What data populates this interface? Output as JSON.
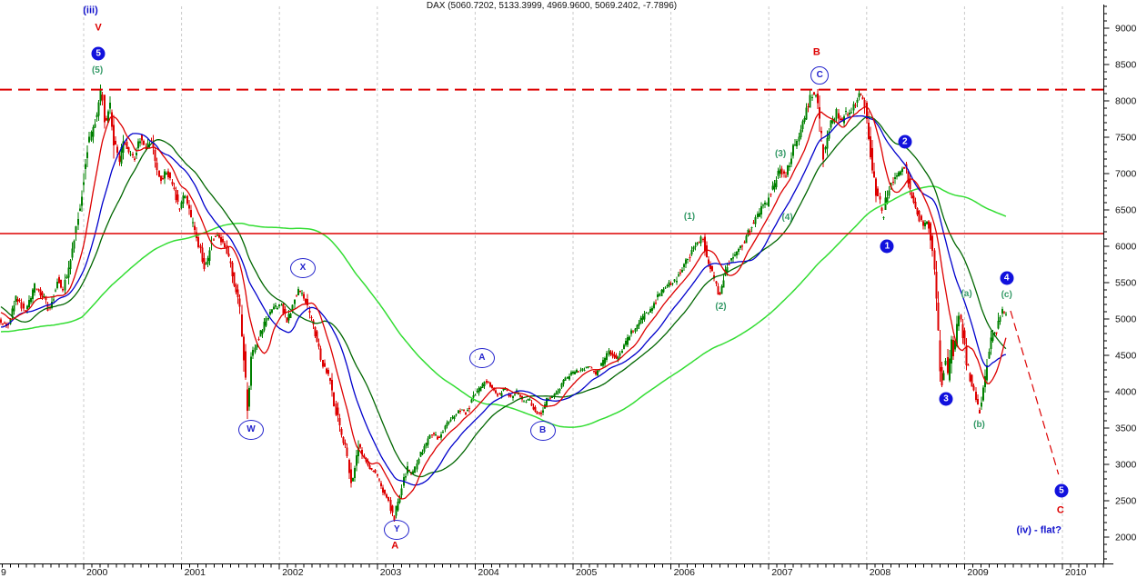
{
  "header": {
    "title": "DAX (5060.7202, 5133.3999, 4969.9600, 5069.2402, -7.7896)"
  },
  "chart_data": {
    "type": "candlestick",
    "instrument": "DAX",
    "timeframe": "weekly",
    "last_quote": {
      "open": 5060.7202,
      "high": 5133.3999,
      "low": 4969.96,
      "close": 5069.2402,
      "change": -7.7896
    },
    "up_color": "#008000",
    "down_color": "#dd0000",
    "grid_color": "#c9c9c9",
    "x_axis": {
      "minor_ticks": "monthly",
      "ticks": [
        {
          "year": 1999,
          "label": "9"
        },
        {
          "year": 2000,
          "label": "2000"
        },
        {
          "year": 2001,
          "label": "2001"
        },
        {
          "year": 2002,
          "label": "2002"
        },
        {
          "year": 2003,
          "label": "2003"
        },
        {
          "year": 2004,
          "label": "2004"
        },
        {
          "year": 2005,
          "label": "2005"
        },
        {
          "year": 2006,
          "label": "2006"
        },
        {
          "year": 2007,
          "label": "2007"
        },
        {
          "year": 2008,
          "label": "2008"
        },
        {
          "year": 2009,
          "label": "2009"
        },
        {
          "year": 2010,
          "label": "2010"
        }
      ]
    },
    "y_axis": {
      "min_visible": 1650,
      "max_visible": 9300,
      "major_tick_step": 500,
      "minor_tick_step": 100,
      "tick_labels": [
        9000,
        8500,
        8000,
        7500,
        7000,
        6500,
        6000,
        5500,
        5000,
        4500,
        4000,
        3500,
        3000,
        2500,
        2000
      ]
    },
    "h_lines": [
      {
        "name": "peak-resistance-line",
        "value": 8155,
        "style": "dashed",
        "color": "#dd0000"
      },
      {
        "name": "mid-support-line",
        "value": 6175,
        "style": "solid",
        "color": "#dd0000"
      }
    ],
    "projection_line": {
      "name": "wave5-projection",
      "from": [
        2009.47,
        5112
      ],
      "to": [
        2009.96,
        2863
      ],
      "color": "#dd0000",
      "style": "dashed"
    },
    "draw_start": 1999.145,
    "price_anchors": [
      [
        1997.5,
        3600
      ],
      [
        1997.75,
        4350
      ],
      [
        1998.0,
        4300
      ],
      [
        1998.25,
        5100
      ],
      [
        1998.54,
        6100
      ],
      [
        1998.75,
        4400
      ],
      [
        1998.9,
        4900
      ],
      [
        1999.0,
        5250
      ],
      [
        1999.08,
        5050
      ],
      [
        1999.14,
        5000
      ],
      [
        1999.24,
        4900
      ],
      [
        1999.33,
        5300
      ],
      [
        1999.42,
        5100
      ],
      [
        1999.52,
        5450
      ],
      [
        1999.61,
        5300
      ],
      [
        1999.67,
        5100
      ],
      [
        1999.75,
        5550
      ],
      [
        1999.81,
        5400
      ],
      [
        1999.89,
        5900
      ],
      [
        1999.95,
        6300
      ],
      [
        2000.0,
        6750
      ],
      [
        2000.05,
        7350
      ],
      [
        2000.12,
        7650
      ],
      [
        2000.17,
        7950
      ],
      [
        2000.2,
        8130
      ],
      [
        2000.24,
        7700
      ],
      [
        2000.29,
        7950
      ],
      [
        2000.33,
        7450
      ],
      [
        2000.38,
        7150
      ],
      [
        2000.43,
        7450
      ],
      [
        2000.47,
        7300
      ],
      [
        2000.54,
        7200
      ],
      [
        2000.59,
        7500
      ],
      [
        2000.63,
        7350
      ],
      [
        2000.71,
        7450
      ],
      [
        2000.77,
        7000
      ],
      [
        2000.82,
        6900
      ],
      [
        2000.86,
        7050
      ],
      [
        2000.93,
        6850
      ],
      [
        2000.99,
        6500
      ],
      [
        2001.05,
        6700
      ],
      [
        2001.12,
        6350
      ],
      [
        2001.19,
        6050
      ],
      [
        2001.26,
        5700
      ],
      [
        2001.33,
        6100
      ],
      [
        2001.39,
        6150
      ],
      [
        2001.47,
        6000
      ],
      [
        2001.54,
        5600
      ],
      [
        2001.61,
        5200
      ],
      [
        2001.65,
        4600
      ],
      [
        2001.69,
        3750
      ],
      [
        2001.73,
        4450
      ],
      [
        2001.79,
        4700
      ],
      [
        2001.84,
        4850
      ],
      [
        2001.91,
        5050
      ],
      [
        2001.96,
        5150
      ],
      [
        2002.03,
        5200
      ],
      [
        2002.1,
        4950
      ],
      [
        2002.17,
        5300
      ],
      [
        2002.22,
        5400
      ],
      [
        2002.29,
        5250
      ],
      [
        2002.35,
        4950
      ],
      [
        2002.42,
        4600
      ],
      [
        2002.47,
        4350
      ],
      [
        2002.54,
        4150
      ],
      [
        2002.58,
        3850
      ],
      [
        2002.64,
        3450
      ],
      [
        2002.7,
        3200
      ],
      [
        2002.75,
        2750
      ],
      [
        2002.79,
        2950
      ],
      [
        2002.83,
        3300
      ],
      [
        2002.88,
        3100
      ],
      [
        2002.93,
        2950
      ],
      [
        2003.0,
        2900
      ],
      [
        2003.07,
        2650
      ],
      [
        2003.12,
        2550
      ],
      [
        2003.19,
        2250
      ],
      [
        2003.23,
        2500
      ],
      [
        2003.28,
        2750
      ],
      [
        2003.33,
        2950
      ],
      [
        2003.37,
        2850
      ],
      [
        2003.44,
        3100
      ],
      [
        2003.51,
        3250
      ],
      [
        2003.58,
        3450
      ],
      [
        2003.64,
        3350
      ],
      [
        2003.72,
        3550
      ],
      [
        2003.79,
        3650
      ],
      [
        2003.87,
        3750
      ],
      [
        2003.93,
        3700
      ],
      [
        2004.0,
        3950
      ],
      [
        2004.07,
        4050
      ],
      [
        2004.13,
        4150
      ],
      [
        2004.19,
        4050
      ],
      [
        2004.26,
        3950
      ],
      [
        2004.32,
        4050
      ],
      [
        2004.38,
        3900
      ],
      [
        2004.44,
        4000
      ],
      [
        2004.51,
        3850
      ],
      [
        2004.56,
        3900
      ],
      [
        2004.63,
        3750
      ],
      [
        2004.68,
        3680
      ],
      [
        2004.75,
        3900
      ],
      [
        2004.81,
        3950
      ],
      [
        2004.88,
        4050
      ],
      [
        2004.93,
        4150
      ],
      [
        2005.0,
        4250
      ],
      [
        2005.09,
        4300
      ],
      [
        2005.19,
        4350
      ],
      [
        2005.25,
        4250
      ],
      [
        2005.32,
        4400
      ],
      [
        2005.39,
        4550
      ],
      [
        2005.46,
        4450
      ],
      [
        2005.53,
        4600
      ],
      [
        2005.6,
        4800
      ],
      [
        2005.68,
        4900
      ],
      [
        2005.74,
        5050
      ],
      [
        2005.82,
        5150
      ],
      [
        2005.88,
        5300
      ],
      [
        2005.94,
        5400
      ],
      [
        2006.0,
        5480
      ],
      [
        2006.05,
        5500
      ],
      [
        2006.11,
        5650
      ],
      [
        2006.18,
        5800
      ],
      [
        2006.24,
        5950
      ],
      [
        2006.3,
        6050
      ],
      [
        2006.34,
        6130
      ],
      [
        2006.38,
        5850
      ],
      [
        2006.43,
        5700
      ],
      [
        2006.48,
        5500
      ],
      [
        2006.51,
        5300
      ],
      [
        2006.56,
        5600
      ],
      [
        2006.61,
        5750
      ],
      [
        2006.65,
        5850
      ],
      [
        2006.71,
        5950
      ],
      [
        2006.76,
        6050
      ],
      [
        2006.83,
        6250
      ],
      [
        2006.9,
        6400
      ],
      [
        2006.95,
        6550
      ],
      [
        2007.0,
        6600
      ],
      [
        2007.04,
        6750
      ],
      [
        2007.09,
        6900
      ],
      [
        2007.13,
        7050
      ],
      [
        2007.18,
        6950
      ],
      [
        2007.23,
        7150
      ],
      [
        2007.27,
        7350
      ],
      [
        2007.32,
        7500
      ],
      [
        2007.37,
        7700
      ],
      [
        2007.41,
        7900
      ],
      [
        2007.46,
        8100
      ],
      [
        2007.51,
        8100
      ],
      [
        2007.55,
        7500
      ],
      [
        2007.58,
        7250
      ],
      [
        2007.62,
        7550
      ],
      [
        2007.66,
        7700
      ],
      [
        2007.71,
        7850
      ],
      [
        2007.76,
        7700
      ],
      [
        2007.8,
        7850
      ],
      [
        2007.85,
        7800
      ],
      [
        2007.9,
        7950
      ],
      [
        2007.94,
        8060
      ],
      [
        2007.97,
        8080
      ],
      [
        2008.02,
        7800
      ],
      [
        2008.06,
        7300
      ],
      [
        2008.11,
        6800
      ],
      [
        2008.16,
        6550
      ],
      [
        2008.18,
        6300
      ],
      [
        2008.22,
        6700
      ],
      [
        2008.27,
        6850
      ],
      [
        2008.31,
        6950
      ],
      [
        2008.36,
        7050
      ],
      [
        2008.41,
        7100
      ],
      [
        2008.45,
        6850
      ],
      [
        2008.5,
        6600
      ],
      [
        2008.55,
        6400
      ],
      [
        2008.59,
        6300
      ],
      [
        2008.64,
        6350
      ],
      [
        2008.67,
        6100
      ],
      [
        2008.71,
        5800
      ],
      [
        2008.74,
        5100
      ],
      [
        2008.77,
        4250
      ],
      [
        2008.79,
        4050
      ],
      [
        2008.82,
        4500
      ],
      [
        2008.85,
        4150
      ],
      [
        2008.88,
        4750
      ],
      [
        2008.91,
        4500
      ],
      [
        2008.95,
        5050
      ],
      [
        2008.99,
        4950
      ],
      [
        2009.02,
        4550
      ],
      [
        2009.04,
        4400
      ],
      [
        2009.07,
        4250
      ],
      [
        2009.1,
        4050
      ],
      [
        2009.13,
        3900
      ],
      [
        2009.17,
        3680
      ],
      [
        2009.21,
        4100
      ],
      [
        2009.24,
        4300
      ],
      [
        2009.28,
        4700
      ],
      [
        2009.31,
        4850
      ],
      [
        2009.34,
        4750
      ],
      [
        2009.36,
        4950
      ],
      [
        2009.4,
        5100
      ],
      [
        2009.43,
        5070
      ]
    ],
    "moving_averages": [
      {
        "name": "ma-long-lightgreen",
        "period_weeks": 130,
        "color": "#33dd33",
        "width": 1.5
      },
      {
        "name": "ma-slow-darkgreen",
        "period_weeks": 40,
        "color": "#006600",
        "width": 1.3
      },
      {
        "name": "ma-medium-blue",
        "period_weeks": 26,
        "color": "#0000cc",
        "width": 1.3
      },
      {
        "name": "ma-fast-red",
        "period_weeks": 13,
        "color": "#dd0000",
        "width": 1.3
      }
    ],
    "annotations": [
      {
        "id": "wave-iii-label",
        "kind": "text",
        "color": "blue",
        "text": "(iii)",
        "t": 2000.07,
        "v": 9237
      },
      {
        "id": "wave-V-label",
        "kind": "text",
        "color": "red",
        "text": "V",
        "t": 2000.15,
        "v": 9000
      },
      {
        "id": "wave-5-disc-top",
        "kind": "disc",
        "text": "5",
        "t": 2000.15,
        "v": 8650
      },
      {
        "id": "wave-5-paren",
        "kind": "text",
        "color": "green",
        "text": "(5)",
        "t": 2000.14,
        "v": 8412
      },
      {
        "id": "wave-W-circle",
        "kind": "circle",
        "text": "W",
        "t": 2001.71,
        "v": 3475
      },
      {
        "id": "wave-X-circle",
        "kind": "circle",
        "text": "X",
        "t": 2002.24,
        "v": 5700
      },
      {
        "id": "wave-Y-circle",
        "kind": "circle",
        "text": "Y",
        "t": 2003.2,
        "v": 2100
      },
      {
        "id": "wave-A-red",
        "kind": "text",
        "color": "red",
        "text": "A",
        "t": 2003.18,
        "v": 1875
      },
      {
        "id": "wave-A-circle",
        "kind": "circle",
        "text": "A",
        "t": 2004.07,
        "v": 4462
      },
      {
        "id": "wave-B-circle",
        "kind": "circle",
        "text": "B",
        "t": 2004.69,
        "v": 3462
      },
      {
        "id": "wave-1-paren",
        "kind": "text",
        "color": "green",
        "text": "(1)",
        "t": 2006.19,
        "v": 6400
      },
      {
        "id": "wave-2-paren",
        "kind": "text",
        "color": "green",
        "text": "(2)",
        "t": 2006.51,
        "v": 5162
      },
      {
        "id": "wave-3-paren",
        "kind": "text",
        "color": "green",
        "text": "(3)",
        "t": 2007.12,
        "v": 7262
      },
      {
        "id": "wave-4-paren",
        "kind": "text",
        "color": "green",
        "text": "(4)",
        "t": 2007.19,
        "v": 6387
      },
      {
        "id": "wave-B-red",
        "kind": "text",
        "color": "red",
        "text": "B",
        "t": 2007.49,
        "v": 8662
      },
      {
        "id": "wave-C-circle",
        "kind": "circle",
        "size": "small",
        "text": "C",
        "t": 2007.52,
        "v": 8350
      },
      {
        "id": "wave-1-disc",
        "kind": "disc",
        "text": "1",
        "t": 2008.21,
        "v": 6000
      },
      {
        "id": "wave-2-disc",
        "kind": "disc",
        "text": "2",
        "t": 2008.39,
        "v": 7437
      },
      {
        "id": "wave-3-disc",
        "kind": "disc",
        "text": "3",
        "t": 2008.81,
        "v": 3900
      },
      {
        "id": "wave-4-disc",
        "kind": "disc",
        "text": "4",
        "t": 2009.43,
        "v": 5562
      },
      {
        "id": "wave-a-paren",
        "kind": "text",
        "color": "green",
        "text": "(a)",
        "t": 2009.02,
        "v": 5337
      },
      {
        "id": "wave-c-paren",
        "kind": "text",
        "color": "green",
        "text": "(c)",
        "t": 2009.43,
        "v": 5325
      },
      {
        "id": "wave-b-paren",
        "kind": "text",
        "color": "green",
        "text": "(b)",
        "t": 2009.15,
        "v": 3537
      },
      {
        "id": "wave-5-disc-bottom",
        "kind": "disc",
        "text": "5",
        "t": 2009.99,
        "v": 2637
      },
      {
        "id": "wave-C-red",
        "kind": "text",
        "color": "red",
        "text": "C",
        "t": 2009.98,
        "v": 2362
      },
      {
        "id": "wave-iv-flat-label",
        "kind": "text",
        "color": "blue",
        "text": "(iv) - flat?",
        "t": 2009.76,
        "v": 2087
      }
    ]
  }
}
